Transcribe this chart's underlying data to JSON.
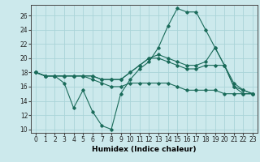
{
  "xlabel": "Humidex (Indice chaleur)",
  "ylabel": "",
  "bg_color": "#cce9ec",
  "grid_color": "#aad4d8",
  "line_color": "#1a6b5a",
  "xlim": [
    -0.5,
    23.5
  ],
  "ylim": [
    9.5,
    27.5
  ],
  "yticks": [
    10,
    12,
    14,
    16,
    18,
    20,
    22,
    24,
    26
  ],
  "xticks": [
    0,
    1,
    2,
    3,
    4,
    5,
    6,
    7,
    8,
    9,
    10,
    11,
    12,
    13,
    14,
    15,
    16,
    17,
    18,
    19,
    20,
    21,
    22,
    23
  ],
  "line1_x": [
    0,
    1,
    2,
    3,
    4,
    5,
    6,
    7,
    8,
    9,
    10,
    11,
    12,
    13,
    14,
    15,
    16,
    17,
    18,
    19,
    20,
    21,
    22,
    23
  ],
  "line1_y": [
    18,
    17.5,
    17.5,
    16.5,
    13,
    15.5,
    12.5,
    10.5,
    10,
    15,
    17,
    18.5,
    19.5,
    21.5,
    24.5,
    27,
    26.5,
    26.5,
    24,
    21.5,
    19,
    16,
    15,
    15
  ],
  "line2_x": [
    0,
    1,
    2,
    3,
    4,
    5,
    6,
    7,
    8,
    9,
    10,
    11,
    12,
    13,
    14,
    15,
    16,
    17,
    18,
    19,
    20,
    21,
    22,
    23
  ],
  "line2_y": [
    18,
    17.5,
    17.5,
    17.5,
    17.5,
    17.5,
    17.5,
    17,
    17,
    17,
    18,
    19,
    20,
    20.5,
    20,
    19.5,
    19,
    19,
    19.5,
    21.5,
    19,
    16.5,
    15.5,
    15
  ],
  "line3_x": [
    0,
    1,
    2,
    3,
    4,
    5,
    6,
    7,
    8,
    9,
    10,
    11,
    12,
    13,
    14,
    15,
    16,
    17,
    18,
    19,
    20,
    21,
    22,
    23
  ],
  "line3_y": [
    18,
    17.5,
    17.5,
    17.5,
    17.5,
    17.5,
    17.5,
    17,
    17,
    17,
    18,
    19,
    20,
    20,
    19.5,
    19,
    18.5,
    18.5,
    19,
    19,
    19,
    16,
    15.5,
    15
  ],
  "line4_x": [
    0,
    1,
    2,
    3,
    4,
    5,
    6,
    7,
    8,
    9,
    10,
    11,
    12,
    13,
    14,
    15,
    16,
    17,
    18,
    19,
    20,
    21,
    22,
    23
  ],
  "line4_y": [
    18,
    17.5,
    17.5,
    17.5,
    17.5,
    17.5,
    17,
    16.5,
    16,
    16,
    16.5,
    16.5,
    16.5,
    16.5,
    16.5,
    16,
    15.5,
    15.5,
    15.5,
    15.5,
    15,
    15,
    15,
    15
  ]
}
